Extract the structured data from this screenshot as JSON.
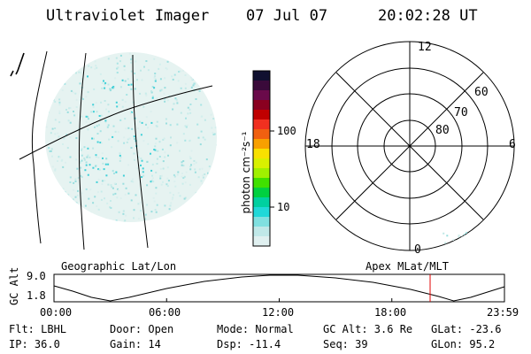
{
  "header": {
    "title": "Ultraviolet Imager",
    "date": "07 Jul 07",
    "time": "20:02:28 UT"
  },
  "colorbar": {
    "unit_label": "photon cm⁻²s⁻¹",
    "tick_labels": [
      "100",
      "10"
    ],
    "colors": [
      "#101030",
      "#3a0a3a",
      "#6a0a4a",
      "#8a0020",
      "#c00000",
      "#f03020",
      "#f06010",
      "#f8a000",
      "#f8e000",
      "#d8f000",
      "#a0f000",
      "#40e000",
      "#00d040",
      "#00d0a0",
      "#20d8d8",
      "#80e0e0",
      "#c0e8e8",
      "#e0f0f0"
    ]
  },
  "polar": {
    "mlt_labels": {
      "top": "12",
      "left": "18",
      "right": "6",
      "bottom": "0"
    },
    "lat_labels": [
      "60",
      "70",
      "80"
    ]
  },
  "timeline": {
    "left_label": "Geographic Lat/Lon",
    "right_label": "Apex MLat/MLT",
    "axis_title": "GC Alt",
    "y_ticks": [
      "9.0",
      "1.8"
    ],
    "x_ticks": [
      "00:00",
      "06:00",
      "12:00",
      "18:00",
      "23:59"
    ],
    "marker_time_hours": 20.04
  },
  "info": {
    "flt": "Flt: LBHL",
    "door": "Door: Open",
    "mode": "Mode: Normal",
    "gcalt": "GC Alt: 3.6 Re",
    "glat": "GLat: -23.6",
    "ip": "IP: 36.0",
    "gain": "Gain: 14",
    "dsp": "Dsp:  -11.4",
    "seq": "Seq: 39",
    "glon": "GLon:  95.2"
  }
}
